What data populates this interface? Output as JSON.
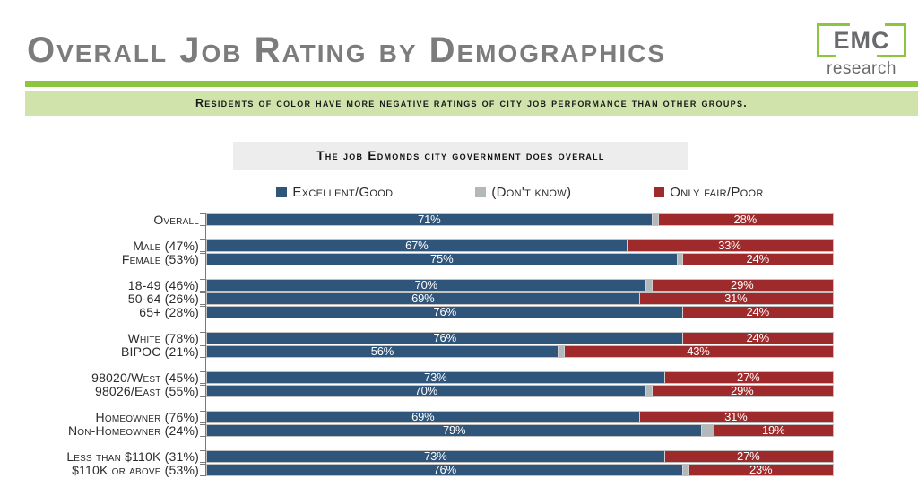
{
  "header": {
    "title": "Overall Job Rating by Demographics",
    "logo_line1": "EMC",
    "logo_line2": "research"
  },
  "banner": {
    "text": "Residents of color have more negative ratings of city job performance than other groups."
  },
  "colors": {
    "accent_green": "#8cc63e",
    "banner_green": "#cfe3ab",
    "title_gray": "#7c7c7c",
    "title_box_gray": "#ededed"
  },
  "chart_data": {
    "type": "bar",
    "stacked": true,
    "orientation": "horizontal",
    "title": "The job Edmonds city government does overall",
    "xlim": [
      0,
      100
    ],
    "grid": false,
    "legend_position": "top",
    "value_suffix": "%",
    "colors": {
      "excellent_good": "#2F557B",
      "dont_know": "#b3b9ba",
      "only_fair_poor": "#9E2A2B"
    },
    "legend": [
      {
        "label": "Excellent/Good",
        "color": "#2F557B"
      },
      {
        "label": "(Don't know)",
        "color": "#b3b9ba"
      },
      {
        "label": "Only fair/Poor",
        "color": "#9E2A2B"
      }
    ],
    "groups": [
      {
        "rows": [
          {
            "label": "Overall",
            "excellent_good": 71,
            "dont_know": 1,
            "only_fair_poor": 28
          }
        ]
      },
      {
        "rows": [
          {
            "label": "Male (47%)",
            "excellent_good": 67,
            "dont_know": 0,
            "only_fair_poor": 33
          },
          {
            "label": "Female (53%)",
            "excellent_good": 75,
            "dont_know": 1,
            "only_fair_poor": 24
          }
        ]
      },
      {
        "rows": [
          {
            "label": "18-49 (46%)",
            "excellent_good": 70,
            "dont_know": 1,
            "only_fair_poor": 29
          },
          {
            "label": "50-64 (26%)",
            "excellent_good": 69,
            "dont_know": 0,
            "only_fair_poor": 31
          },
          {
            "label": "65+ (28%)",
            "excellent_good": 76,
            "dont_know": 0,
            "only_fair_poor": 24
          }
        ]
      },
      {
        "rows": [
          {
            "label": "White (78%)",
            "excellent_good": 76,
            "dont_know": 0,
            "only_fair_poor": 24
          },
          {
            "label": "BIPOC (21%)",
            "excellent_good": 56,
            "dont_know": 1,
            "only_fair_poor": 43
          }
        ]
      },
      {
        "rows": [
          {
            "label": "98020/West (45%)",
            "excellent_good": 73,
            "dont_know": 0,
            "only_fair_poor": 27
          },
          {
            "label": "98026/East (55%)",
            "excellent_good": 70,
            "dont_know": 1,
            "only_fair_poor": 29
          }
        ]
      },
      {
        "rows": [
          {
            "label": "Homeowner (76%)",
            "excellent_good": 69,
            "dont_know": 0,
            "only_fair_poor": 31
          },
          {
            "label": "Non-Homeowner (24%)",
            "excellent_good": 79,
            "dont_know": 2,
            "only_fair_poor": 19
          }
        ]
      },
      {
        "rows": [
          {
            "label": "Less than $110K (31%)",
            "excellent_good": 73,
            "dont_know": 0,
            "only_fair_poor": 27
          },
          {
            "label": "$110K or above (53%)",
            "excellent_good": 76,
            "dont_know": 1,
            "only_fair_poor": 23
          }
        ]
      }
    ]
  }
}
